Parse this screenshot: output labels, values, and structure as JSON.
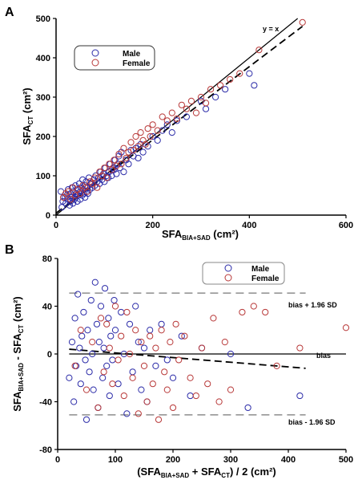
{
  "colors": {
    "male": "#2b2ba8",
    "female": "#b83838",
    "ref": "#000000",
    "loa": "#777777"
  },
  "chart_data": [
    {
      "id": "A",
      "type": "scatter",
      "panel_label": "A",
      "xlabel": {
        "base": "SFA",
        "sub": "BIA+SAD",
        "suffix": " (cm²)"
      },
      "ylabel": {
        "base": "SFA",
        "sub": "CT",
        "suffix": " (cm²)"
      },
      "xlim": [
        0,
        600
      ],
      "ylim": [
        0,
        500
      ],
      "xticks": [
        "0",
        "200",
        "400",
        "600"
      ],
      "yticks": [
        "0",
        "100",
        "200",
        "300",
        "400",
        "500"
      ],
      "grid": false,
      "legend": {
        "placement": "top-left",
        "entries": [
          "Male",
          "Female"
        ]
      },
      "lines": [
        {
          "name": "y = x",
          "style": "solid",
          "x": [
            0,
            500
          ],
          "y": [
            0,
            500
          ]
        },
        {
          "style": "dashed",
          "x": [
            0,
            510
          ],
          "y": [
            5,
            480
          ]
        }
      ],
      "annotations": [
        {
          "text": "y = x"
        }
      ],
      "series": [
        {
          "name": "Male",
          "x": [
            10,
            12,
            14,
            18,
            20,
            22,
            24,
            25,
            28,
            30,
            30,
            32,
            33,
            34,
            35,
            36,
            38,
            40,
            40,
            42,
            44,
            45,
            46,
            48,
            50,
            50,
            52,
            54,
            55,
            56,
            58,
            60,
            60,
            62,
            64,
            65,
            66,
            68,
            70,
            72,
            75,
            78,
            80,
            82,
            85,
            88,
            90,
            92,
            95,
            98,
            100,
            102,
            105,
            108,
            110,
            112,
            115,
            118,
            120,
            122,
            125,
            128,
            130,
            132,
            135,
            140,
            145,
            150,
            155,
            160,
            165,
            170,
            175,
            180,
            190,
            200,
            210,
            220,
            230,
            240,
            250,
            270,
            300,
            310,
            330,
            350,
            400,
            410
          ],
          "y": [
            60,
            20,
            35,
            45,
            30,
            50,
            40,
            65,
            25,
            55,
            35,
            45,
            70,
            50,
            30,
            60,
            40,
            45,
            75,
            55,
            35,
            65,
            50,
            80,
            40,
            60,
            70,
            50,
            90,
            65,
            55,
            45,
            75,
            85,
            60,
            70,
            55,
            95,
            65,
            80,
            70,
            90,
            75,
            100,
            85,
            95,
            80,
            110,
            90,
            105,
            85,
            120,
            100,
            95,
            110,
            130,
            100,
            120,
            115,
            140,
            105,
            130,
            150,
            120,
            160,
            110,
            140,
            130,
            165,
            150,
            170,
            145,
            180,
            160,
            175,
            200,
            190,
            215,
            230,
            210,
            240,
            250,
            290,
            270,
            300,
            320,
            360,
            330
          ]
        },
        {
          "name": "Female",
          "x": [
            15,
            20,
            25,
            30,
            35,
            40,
            45,
            50,
            55,
            60,
            65,
            70,
            75,
            80,
            85,
            90,
            95,
            100,
            105,
            110,
            115,
            120,
            125,
            130,
            135,
            140,
            145,
            150,
            155,
            160,
            165,
            170,
            175,
            180,
            185,
            190,
            195,
            200,
            210,
            220,
            230,
            240,
            250,
            260,
            270,
            280,
            290,
            300,
            310,
            320,
            340,
            360,
            380,
            420,
            510
          ],
          "y": [
            45,
            55,
            60,
            40,
            70,
            50,
            65,
            55,
            75,
            70,
            60,
            85,
            80,
            95,
            70,
            110,
            100,
            120,
            95,
            130,
            115,
            140,
            125,
            155,
            130,
            170,
            145,
            160,
            185,
            165,
            200,
            175,
            210,
            190,
            180,
            220,
            200,
            230,
            215,
            250,
            240,
            260,
            245,
            280,
            270,
            290,
            260,
            300,
            285,
            320,
            330,
            345,
            360,
            420,
            490
          ]
        }
      ]
    },
    {
      "id": "B",
      "type": "scatter",
      "panel_label": "B",
      "xlabel": {
        "lead": "(SFA",
        "sub1": "BIA+SAD",
        "mid": " + SFA",
        "sub2": "CT",
        "suffix": ") / 2 (cm²)"
      },
      "ylabel": {
        "base": "SFA",
        "sub1": "BIA+SAD",
        "mid": " - SFA",
        "sub2": "CT",
        "suffix": " (cm²)"
      },
      "xlim": [
        0,
        500
      ],
      "ylim": [
        -80,
        80
      ],
      "xticks": [
        "0",
        "100",
        "200",
        "300",
        "400",
        "500"
      ],
      "yticks": [
        "-80",
        "-40",
        "0",
        "40",
        "80"
      ],
      "grid": false,
      "legend": {
        "placement": "top-right",
        "entries": [
          "Male",
          "Female"
        ]
      },
      "lines": [
        {
          "name": "bias + 1.96 SD",
          "style": "long-dash",
          "x": [
            20,
            430
          ],
          "y": [
            51,
            51
          ]
        },
        {
          "name": "bias",
          "style": "solid",
          "x": [
            20,
            500
          ],
          "y": [
            0,
            0
          ]
        },
        {
          "name": "bias - 1.96 SD",
          "style": "long-dash",
          "x": [
            20,
            430
          ],
          "y": [
            -51,
            -51
          ]
        },
        {
          "style": "dashed",
          "x": [
            20,
            430
          ],
          "y": [
            4,
            -12
          ]
        }
      ],
      "annotations": [
        {
          "text": "bias + 1.96 SD"
        },
        {
          "text": "bias"
        },
        {
          "text": "bias - 1.96 SD"
        }
      ],
      "series": [
        {
          "name": "Male",
          "x": [
            20,
            25,
            28,
            30,
            32,
            35,
            38,
            40,
            42,
            45,
            48,
            50,
            52,
            55,
            58,
            60,
            62,
            65,
            68,
            70,
            72,
            75,
            78,
            80,
            82,
            85,
            88,
            90,
            92,
            95,
            98,
            100,
            105,
            110,
            115,
            120,
            125,
            130,
            135,
            140,
            145,
            150,
            155,
            160,
            170,
            180,
            190,
            200,
            215,
            230,
            250,
            300,
            330,
            420
          ],
          "y": [
            -20,
            10,
            -40,
            30,
            -10,
            50,
            5,
            -25,
            15,
            35,
            -5,
            -55,
            20,
            -15,
            45,
            0,
            -30,
            60,
            25,
            -45,
            10,
            40,
            -20,
            5,
            55,
            -10,
            30,
            -35,
            15,
            -5,
            45,
            20,
            -25,
            35,
            0,
            -50,
            25,
            -15,
            40,
            10,
            -30,
            5,
            -40,
            20,
            -10,
            25,
            -5,
            -20,
            15,
            -35,
            5,
            0,
            -45,
            -35
          ]
        },
        {
          "name": "Female",
          "x": [
            30,
            40,
            50,
            60,
            70,
            75,
            80,
            85,
            90,
            95,
            100,
            105,
            110,
            115,
            120,
            125,
            130,
            135,
            140,
            145,
            150,
            155,
            160,
            165,
            170,
            175,
            180,
            185,
            190,
            195,
            200,
            205,
            210,
            220,
            230,
            240,
            250,
            260,
            270,
            280,
            290,
            300,
            320,
            340,
            360,
            380,
            420,
            500
          ],
          "y": [
            -10,
            20,
            -30,
            10,
            -45,
            30,
            -15,
            25,
            5,
            -25,
            40,
            -5,
            15,
            -35,
            35,
            0,
            -20,
            20,
            -50,
            10,
            -10,
            -40,
            15,
            -25,
            5,
            -55,
            20,
            -15,
            -30,
            10,
            -45,
            25,
            -5,
            15,
            -20,
            -35,
            5,
            -25,
            30,
            -40,
            10,
            -30,
            35,
            40,
            35,
            -10,
            5,
            22
          ]
        }
      ]
    }
  ]
}
